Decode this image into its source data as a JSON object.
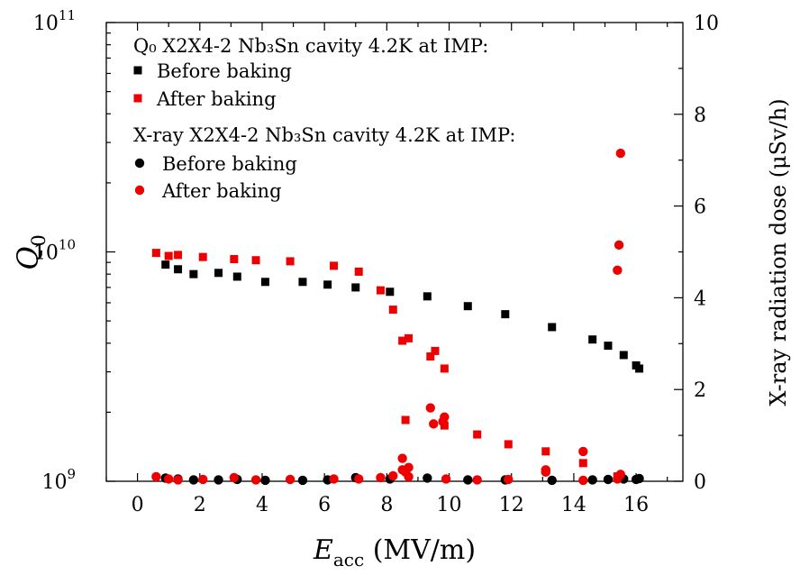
{
  "chart_data": {
    "type": "scatter",
    "xlabel": {
      "main": "E",
      "sub": "acc",
      "unit": " (MV/m)"
    },
    "ylabel_left": {
      "main": "Q",
      "sub": "0"
    },
    "ylabel_right": "X-ray radiation dose (μSv/h)",
    "x_range": [
      -1,
      17.5
    ],
    "x_ticks": [
      0,
      2,
      4,
      6,
      8,
      10,
      12,
      14,
      16
    ],
    "y_left_range": [
      1000000000.0,
      100000000000.0
    ],
    "y_left_scale": "log",
    "y_left_ticks": [
      {
        "value": 1000000000.0,
        "base": "10",
        "exp": "9"
      },
      {
        "value": 10000000000.0,
        "base": "10",
        "exp": "10"
      },
      {
        "value": 100000000000.0,
        "base": "10",
        "exp": "11"
      }
    ],
    "y_right_range": [
      0,
      10
    ],
    "y_right_ticks": [
      0,
      2,
      4,
      6,
      8,
      10
    ],
    "legend": {
      "position": "top-left",
      "group_q0": "Q₀ X2X4-2 Nb₃Sn cavity 4.2K at IMP:",
      "group_xray": "X-ray X2X4-2 Nb₃Sn cavity 4.2K at IMP:",
      "before": "Before baking",
      "after": "After baking"
    },
    "colors": {
      "before": "#000000",
      "after": "#ee0000"
    },
    "series": [
      {
        "name": "Before baking",
        "group": "Q0",
        "marker": "square",
        "axis": "left",
        "points": [
          [
            0.9,
            8800000000.0
          ],
          [
            1.3,
            8400000000.0
          ],
          [
            1.8,
            8000000000.0
          ],
          [
            2.6,
            8100000000.0
          ],
          [
            3.2,
            7800000000.0
          ],
          [
            4.1,
            7400000000.0
          ],
          [
            5.3,
            7400000000.0
          ],
          [
            6.1,
            7200000000.0
          ],
          [
            7.0,
            7000000000.0
          ],
          [
            8.1,
            6700000000.0
          ],
          [
            9.3,
            6400000000.0
          ],
          [
            10.6,
            5800000000.0
          ],
          [
            11.8,
            5350000000.0
          ],
          [
            13.3,
            4700000000.0
          ],
          [
            14.6,
            4150000000.0
          ],
          [
            15.1,
            3900000000.0
          ],
          [
            15.6,
            3550000000.0
          ],
          [
            16.0,
            3200000000.0
          ],
          [
            16.1,
            3100000000.0
          ]
        ]
      },
      {
        "name": "After baking",
        "group": "Q0",
        "marker": "square",
        "axis": "left",
        "points": [
          [
            0.6,
            9900000000.0
          ],
          [
            1.0,
            9600000000.0
          ],
          [
            1.3,
            9700000000.0
          ],
          [
            2.1,
            9500000000.0
          ],
          [
            3.1,
            9300000000.0
          ],
          [
            3.8,
            9200000000.0
          ],
          [
            4.9,
            9100000000.0
          ],
          [
            6.3,
            8700000000.0
          ],
          [
            7.1,
            8200000000.0
          ],
          [
            7.8,
            6800000000.0
          ],
          [
            8.2,
            5600000000.0
          ],
          [
            8.5,
            4100000000.0
          ],
          [
            8.7,
            4200000000.0
          ],
          [
            8.6,
            1850000000.0
          ],
          [
            9.4,
            3500000000.0
          ],
          [
            9.55,
            3700000000.0
          ],
          [
            9.85,
            3100000000.0
          ],
          [
            9.85,
            1750000000.0
          ],
          [
            10.9,
            1600000000.0
          ],
          [
            11.9,
            1450000000.0
          ],
          [
            13.1,
            1350000000.0
          ],
          [
            14.3,
            1200000000.0
          ],
          [
            15.4,
            1050000000.0
          ]
        ]
      },
      {
        "name": "Before baking",
        "group": "X-ray",
        "marker": "circle",
        "axis": "right",
        "points": [
          [
            0.9,
            0.07
          ],
          [
            1.3,
            0.05
          ],
          [
            1.8,
            0.03
          ],
          [
            2.6,
            0.03
          ],
          [
            3.2,
            0.04
          ],
          [
            4.1,
            0.02
          ],
          [
            5.3,
            0.02
          ],
          [
            6.1,
            0.03
          ],
          [
            7.0,
            0.08
          ],
          [
            8.1,
            0.05
          ],
          [
            9.3,
            0.07
          ],
          [
            10.6,
            0.03
          ],
          [
            11.8,
            0.03
          ],
          [
            13.3,
            0.02
          ],
          [
            14.6,
            0.03
          ],
          [
            15.1,
            0.04
          ],
          [
            15.6,
            0.05
          ],
          [
            16.0,
            0.04
          ],
          [
            16.1,
            0.06
          ]
        ]
      },
      {
        "name": "After baking",
        "group": "X-ray",
        "marker": "circle",
        "axis": "right",
        "points": [
          [
            0.6,
            0.1
          ],
          [
            1.0,
            0.05
          ],
          [
            1.3,
            0.03
          ],
          [
            2.1,
            0.04
          ],
          [
            3.1,
            0.08
          ],
          [
            3.8,
            0.03
          ],
          [
            4.9,
            0.04
          ],
          [
            6.3,
            0.05
          ],
          [
            7.1,
            0.05
          ],
          [
            7.8,
            0.08
          ],
          [
            8.2,
            0.12
          ],
          [
            8.5,
            0.5
          ],
          [
            8.5,
            0.25
          ],
          [
            8.6,
            0.2
          ],
          [
            8.7,
            0.3
          ],
          [
            8.7,
            0.1
          ],
          [
            9.4,
            1.6
          ],
          [
            9.5,
            1.25
          ],
          [
            9.8,
            1.3
          ],
          [
            9.85,
            1.4
          ],
          [
            9.9,
            0.05
          ],
          [
            10.9,
            0.03
          ],
          [
            11.9,
            0.04
          ],
          [
            13.1,
            0.25
          ],
          [
            13.1,
            0.2
          ],
          [
            14.3,
            0.65
          ],
          [
            14.3,
            0.02
          ],
          [
            15.4,
            4.6
          ],
          [
            15.45,
            5.15
          ],
          [
            15.5,
            7.15
          ],
          [
            15.4,
            0.05
          ],
          [
            15.5,
            0.15
          ]
        ]
      }
    ]
  }
}
